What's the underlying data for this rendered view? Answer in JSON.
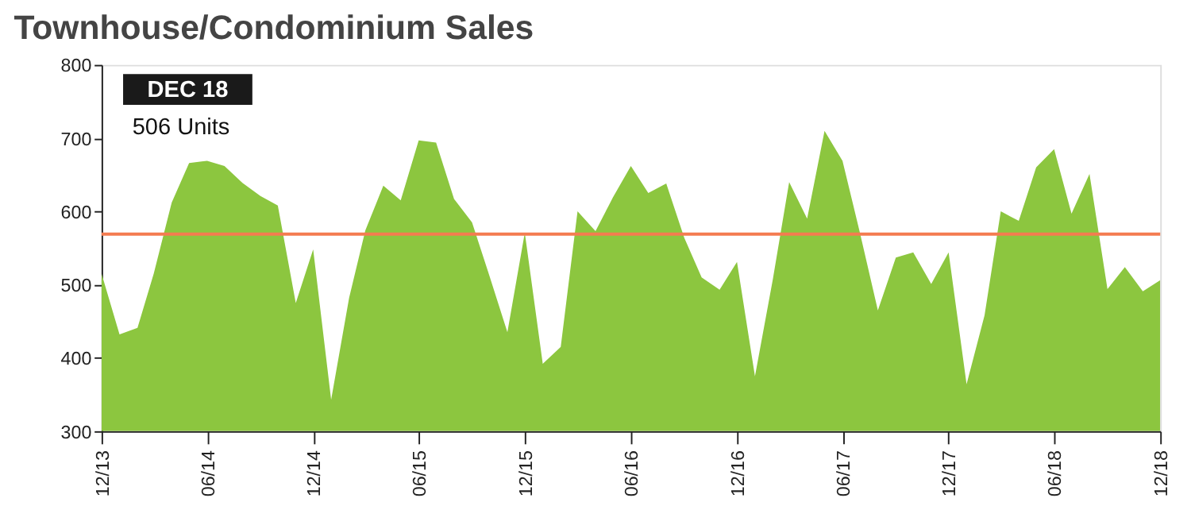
{
  "chart_data": {
    "type": "area",
    "title": "Townhouse/Condominium Sales",
    "annotations": [
      "DEC 18",
      "506 Units"
    ],
    "x": [
      "2013-12",
      "2014-01",
      "2014-02",
      "2014-03",
      "2014-04",
      "2014-05",
      "2014-06",
      "2014-07",
      "2014-08",
      "2014-09",
      "2014-10",
      "2014-11",
      "2014-12",
      "2015-01",
      "2015-02",
      "2015-03",
      "2015-04",
      "2015-05",
      "2015-06",
      "2015-07",
      "2015-08",
      "2015-09",
      "2015-10",
      "2015-11",
      "2015-12",
      "2016-01",
      "2016-02",
      "2016-03",
      "2016-04",
      "2016-05",
      "2016-06",
      "2016-07",
      "2016-08",
      "2016-09",
      "2016-10",
      "2016-11",
      "2016-12",
      "2017-01",
      "2017-02",
      "2017-03",
      "2017-04",
      "2017-05",
      "2017-06",
      "2017-07",
      "2017-08",
      "2017-09",
      "2017-10",
      "2017-11",
      "2017-12",
      "2018-01",
      "2018-02",
      "2018-03",
      "2018-04",
      "2018-05",
      "2018-06",
      "2018-07",
      "2018-08",
      "2018-09",
      "2018-10",
      "2018-11",
      "2018-12"
    ],
    "series": [
      {
        "color": "#8cc63f",
        "values": [
          515,
          432,
          441,
          515,
          612,
          666,
          669,
          662,
          639,
          621,
          608,
          475,
          548,
          343,
          482,
          574,
          635,
          615,
          697,
          694,
          617,
          585,
          512,
          435,
          571,
          392,
          415,
          600,
          573,
          619,
          662,
          625,
          638,
          564,
          510,
          493,
          531,
          375,
          508,
          640,
          590,
          710,
          669,
          571,
          465,
          537,
          544,
          501,
          544,
          364,
          458,
          600,
          587,
          660,
          685,
          597,
          651,
          494,
          524,
          491,
          506
        ]
      }
    ],
    "ylim": [
      300,
      800
    ],
    "yticks": [
      300,
      400,
      500,
      600,
      700,
      800
    ],
    "xlim": [
      "2013-12",
      "2018-12"
    ],
    "xticks": [
      {
        "value": "2013-12",
        "label": "12/13"
      },
      {
        "value": "2014-06",
        "label": "06/14"
      },
      {
        "value": "2014-12",
        "label": "12/14"
      },
      {
        "value": "2015-06",
        "label": "06/15"
      },
      {
        "value": "2015-12",
        "label": "12/15"
      },
      {
        "value": "2016-06",
        "label": "06/16"
      },
      {
        "value": "2016-12",
        "label": "12/16"
      },
      {
        "value": "2017-06",
        "label": "06/17"
      },
      {
        "value": "2017-12",
        "label": "12/17"
      },
      {
        "value": "2018-06",
        "label": "06/18"
      },
      {
        "value": "2018-12",
        "label": "12/18"
      }
    ],
    "ref_lines": [
      {
        "axis": "y",
        "value": 569,
        "color": "#f47c50"
      }
    ],
    "grid": false
  }
}
